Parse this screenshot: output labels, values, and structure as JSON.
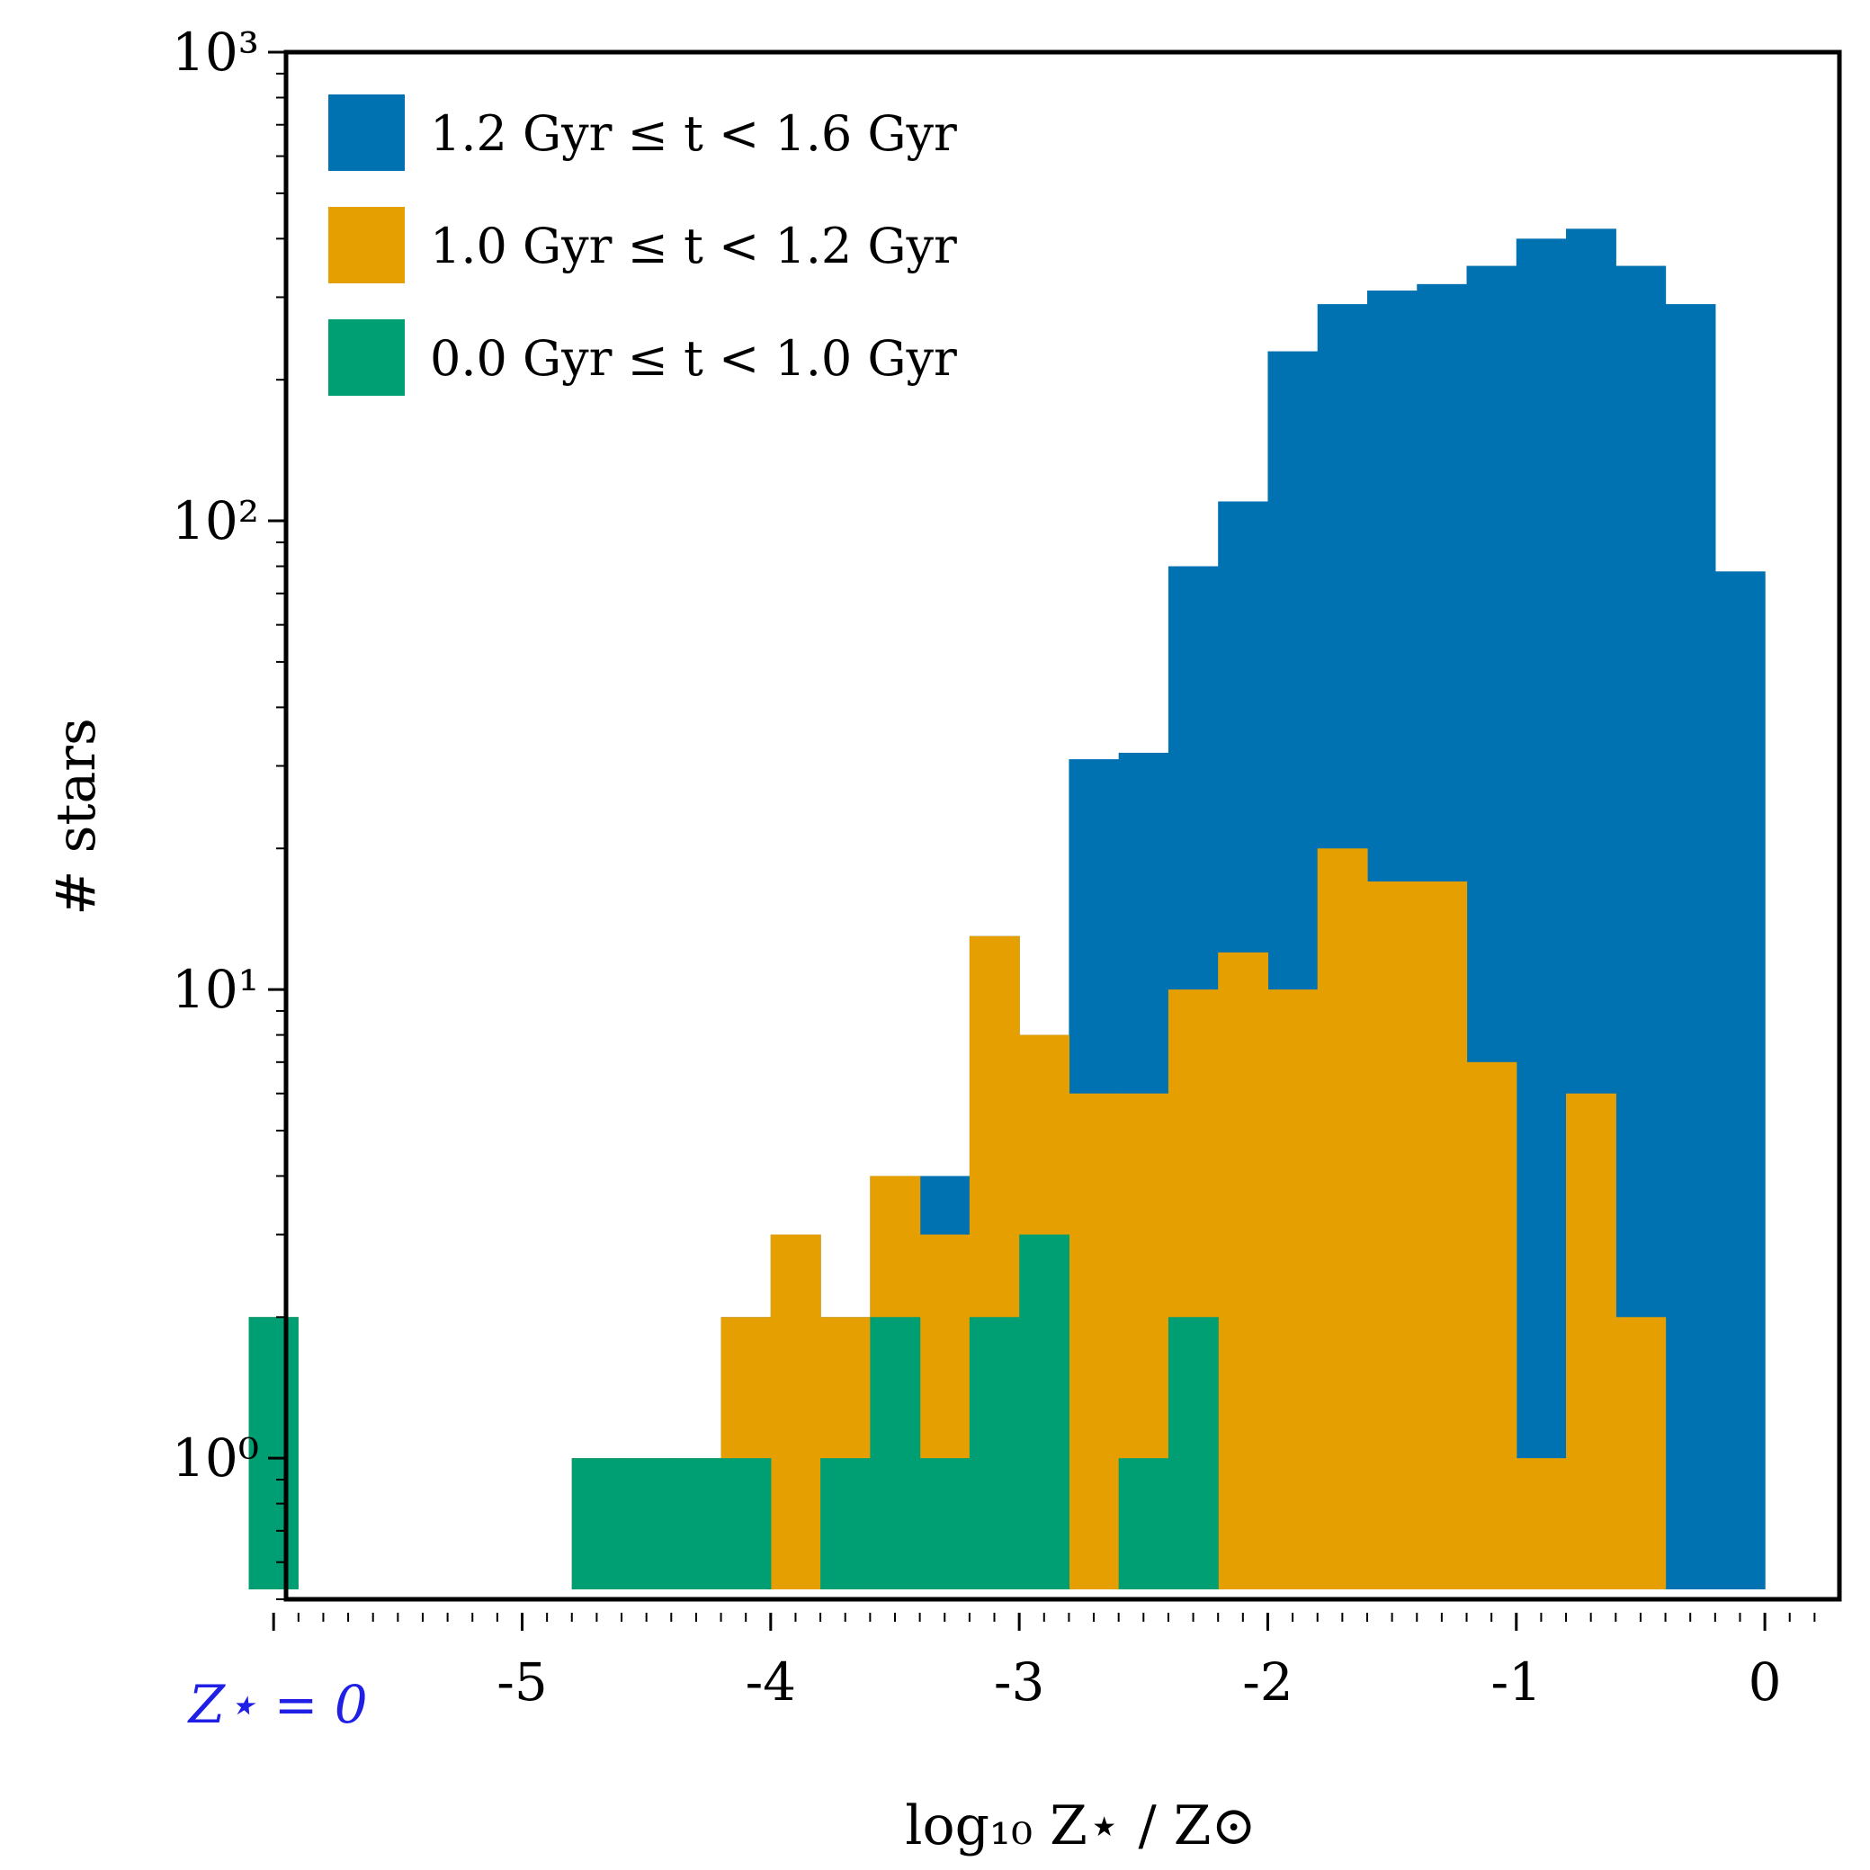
{
  "chart_data": {
    "type": "bar",
    "histogram": true,
    "stacked": true,
    "y_scale": "log",
    "xlabel": "log₁₀ Z⋆ / Z⊙",
    "ylabel": "# stars",
    "xlim": [
      -5.95,
      0.3
    ],
    "ylim": [
      0.5,
      1000
    ],
    "grid": false,
    "legend_placement": "top-left",
    "x_ticks": [
      "-5",
      "-4",
      "-3",
      "-2",
      "-1",
      "0"
    ],
    "y_ticks": [
      "10⁰",
      "10¹",
      "10²",
      "10³"
    ],
    "zero_bin_label": "Z⋆ = 0",
    "zero_bin_label_color": "#1f1fe6",
    "bin_edges": [
      -4.8,
      -4.6,
      -4.4,
      -4.2,
      -4.0,
      -3.8,
      -3.6,
      -3.4,
      -3.2,
      -3.0,
      -2.8,
      -2.6,
      -2.4,
      -2.2,
      -2.0,
      -1.8,
      -1.6,
      -1.4,
      -1.2,
      -1.0,
      -0.8,
      -0.6,
      -0.4,
      -0.2,
      0.0
    ],
    "zero_bin_edges": [
      -6.1,
      -5.9
    ],
    "series": [
      {
        "name": "1.2 Gyr ≤ t < 1.6 Gyr",
        "color": "#0072b2",
        "cumulative_counts": [
          1,
          1,
          1,
          2,
          3,
          2,
          4,
          4,
          13,
          8,
          31,
          32,
          80,
          110,
          230,
          290,
          310,
          320,
          350,
          400,
          420,
          350,
          290,
          78
        ],
        "zero_bin_count": 2
      },
      {
        "name": "1.0 Gyr ≤ t < 1.2 Gyr",
        "color": "#e69f00",
        "cumulative_counts": [
          1,
          1,
          1,
          2,
          3,
          2,
          4,
          3,
          13,
          8,
          6,
          6,
          10,
          12,
          10,
          20,
          17,
          17,
          7,
          1,
          6,
          2,
          0,
          0
        ],
        "zero_bin_count": 2
      },
      {
        "name": "0.0 Gyr ≤ t < 1.0 Gyr",
        "color": "#009e73",
        "cumulative_counts": [
          1,
          1,
          1,
          1,
          0,
          1,
          2,
          1,
          2,
          3,
          0,
          1,
          2,
          0,
          0,
          0,
          0,
          0,
          0,
          0,
          0,
          0,
          0,
          0
        ],
        "zero_bin_count": 2
      }
    ]
  }
}
